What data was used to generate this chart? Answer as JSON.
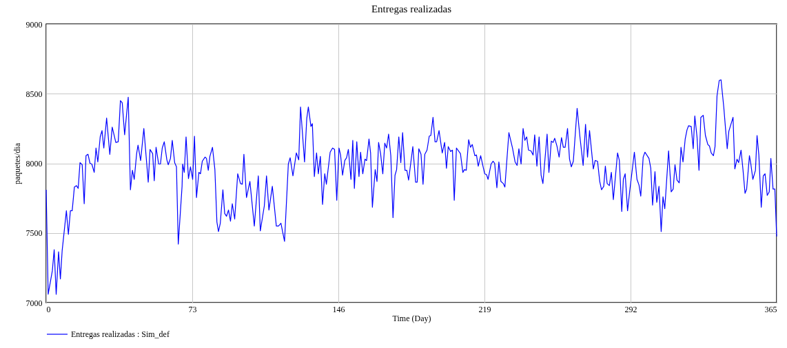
{
  "chart_data": {
    "type": "line",
    "title": "Entregas realizadas",
    "xlabel": "Time (Day)",
    "ylabel": "paquetes/dia",
    "xlim": [
      0,
      365
    ],
    "xticks": [
      0,
      73,
      146,
      219,
      292,
      365
    ],
    "ylim": [
      7000,
      9000
    ],
    "yticks": [
      7000,
      7500,
      8000,
      8500,
      9000
    ],
    "grid": true,
    "legend": "bottom",
    "x": [
      0,
      1,
      3.1,
      4,
      5,
      6.2,
      7.1,
      8,
      10.1,
      11.1,
      12.1,
      13,
      14.1,
      15.1,
      16,
      16.9,
      18,
      19,
      19.9,
      20.9,
      21.9,
      22.8,
      24,
      24.9,
      25.8,
      27,
      27.9,
      28.8,
      30.2,
      31.8,
      33,
      34.8,
      36,
      37.1,
      38,
      39.2,
      41,
      42.1,
      43.1,
      44,
      45.2,
      45.9,
      47.2,
      48.8,
      51,
      51.9,
      53.2,
      54,
      54.9,
      56.2,
      57.1,
      58,
      59,
      60.3,
      61,
      62.1,
      63,
      64.2,
      65.1,
      66,
      67.9,
      68.2,
      69,
      69.9,
      71.1,
      72.1,
      73.2,
      74.1,
      75.1,
      76.3,
      77.1,
      78,
      79.4,
      80.1,
      81,
      81.8,
      83.1,
      84.3,
      85.3,
      86.1,
      87,
      88.3,
      89.2,
      90.1,
      91.1,
      92.1,
      93,
      94.2,
      95.7,
      97.1,
      98,
      98.8,
      100.1,
      101.8,
      104,
      106,
      107,
      109,
      110.1,
      111.3,
      113,
      115,
      116.1,
      117.3,
      119.1,
      121,
      121.9,
      123.3,
      125,
      126.2,
      127.1,
      129.1,
      130.2,
      131,
      132.3,
      133,
      134,
      135.1,
      136,
      137,
      138.1,
      139.2,
      140,
      141.9,
      143.1,
      144.1,
      145.2,
      146.3,
      147.1,
      148.1,
      149.2,
      150.1,
      151,
      152.3,
      153.2,
      154,
      155.2,
      156.3,
      157.1,
      158.2,
      159.3,
      160.1,
      161.3,
      162.1,
      163,
      164.4,
      165.3,
      166.1,
      167.1,
      168.2,
      169.2,
      170.1,
      171.1,
      172.2,
      173.3,
      174.3,
      175.1,
      176.2,
      177.2,
      178.1,
      179.3,
      180.2,
      181.1,
      183.2,
      184.6,
      185.4,
      186.2,
      187.3,
      188.3,
      189.2,
      190.3,
      191.4,
      192.2,
      193.3,
      194.3,
      195.1,
      196.3,
      197.9,
      199.1,
      200,
      200.9,
      202.1,
      203,
      203.9,
      205,
      207,
      208.2,
      209,
      209.9,
      211.1,
      212,
      212.9,
      214.2,
      215,
      215.9,
      217.1,
      219.1,
      220,
      220.8,
      222.3,
      223.3,
      224.1,
      225.2,
      226.2,
      227.2,
      228.4,
      229.2,
      231.2,
      233,
      234.3,
      235.3,
      236.2,
      237.3,
      238.3,
      239.2,
      240.1,
      241,
      242.2,
      243.3,
      244.1,
      245.2,
      246.3,
      247.3,
      248.2,
      250.3,
      251.2,
      252.4,
      253.3,
      254.1,
      255.2,
      256.3,
      257.5,
      258.4,
      259.3,
      260.5,
      261.5,
      262.4,
      263.4,
      265.3,
      266.7,
      268.3,
      269.5,
      270.5,
      271.5,
      273.4,
      274.3,
      275.5,
      276.6,
      277.5,
      278.6,
      279.4,
      280.3,
      281.4,
      282.4,
      283.4,
      285.5,
      286.4,
      287.6,
      288.4,
      289.3,
      290.5,
      291.6,
      293.9,
      295.2,
      296.2,
      297.1,
      298.3,
      299.2,
      301.2,
      302.1,
      303,
      304.2,
      305.1,
      306.2,
      307.3,
      308.2,
      309.1,
      311,
      312.3,
      313.3,
      314.2,
      315.2,
      316.3,
      317.2,
      318.2,
      319.3,
      320.2,
      321,
      322.3,
      323.3,
      324.1,
      325.2,
      326.2,
      327.1,
      328.3,
      329.4,
      330.6,
      331.4,
      332.3,
      333.4,
      334.2,
      335.2,
      336.3,
      337.2,
      338.6,
      339.5,
      340.3,
      341.1,
      343.2,
      344.1,
      345.2,
      346,
      347.2,
      348.2,
      349.2,
      350,
      351.4,
      352.1,
      353.1,
      354.4,
      355.2,
      356.1,
      357.3,
      358.3,
      359.2,
      360.3,
      361.3,
      362.1,
      363.2,
      364.1,
      365
    ],
    "series": [
      {
        "name": "Entregas realizadas : Sim_def",
        "color": "#0000ff",
        "values": [
          7810,
          7060,
          7230,
          7380,
          7060,
          7365,
          7170,
          7375,
          7660,
          7490,
          7660,
          7660,
          7830,
          7840,
          7820,
          8005,
          7990,
          7710,
          8055,
          8065,
          8000,
          7995,
          7935,
          8110,
          8010,
          8190,
          8235,
          8110,
          8325,
          8065,
          8260,
          8150,
          8155,
          8450,
          8435,
          8205,
          8475,
          7810,
          7950,
          7885,
          8070,
          8130,
          8020,
          8250,
          7865,
          8100,
          8070,
          7875,
          8115,
          7995,
          7995,
          8110,
          8155,
          8025,
          7990,
          8035,
          8165,
          8005,
          7975,
          7420,
          7835,
          7995,
          7935,
          8190,
          7890,
          7975,
          7885,
          8195,
          7755,
          7935,
          7925,
          8015,
          8045,
          8035,
          7950,
          8050,
          8115,
          7955,
          7580,
          7510,
          7570,
          7810,
          7640,
          7620,
          7665,
          7585,
          7710,
          7600,
          7925,
          7855,
          7850,
          8065,
          7755,
          7870,
          7550,
          7910,
          7515,
          7695,
          7910,
          7665,
          7835,
          7550,
          7550,
          7570,
          7440,
          7995,
          8040,
          7910,
          8075,
          8025,
          8405,
          8010,
          8320,
          8405,
          8265,
          8285,
          7905,
          8075,
          7925,
          8050,
          7705,
          7925,
          7850,
          8080,
          8110,
          8100,
          7735,
          8110,
          8060,
          7915,
          8020,
          8040,
          8100,
          7885,
          8165,
          7820,
          8155,
          7905,
          8080,
          7925,
          8030,
          8020,
          8175,
          8075,
          7685,
          7955,
          7870,
          8150,
          8070,
          7925,
          8145,
          8110,
          8210,
          8055,
          7610,
          7915,
          7955,
          8190,
          8005,
          8220,
          7950,
          7950,
          7880,
          8120,
          7865,
          7865,
          8105,
          8065,
          7850,
          8065,
          8095,
          8195,
          8200,
          8330,
          8155,
          8155,
          8235,
          8075,
          8150,
          7965,
          8120,
          8085,
          8095,
          7735,
          8110,
          8070,
          7935,
          7955,
          7950,
          8170,
          8115,
          8135,
          8055,
          8060,
          7980,
          8055,
          7925,
          7920,
          7885,
          7995,
          8015,
          8000,
          7825,
          8010,
          7870,
          7855,
          7830,
          8220,
          8110,
          8010,
          7985,
          8105,
          7995,
          8250,
          8165,
          8190,
          8095,
          8090,
          8060,
          8205,
          7980,
          8190,
          7915,
          7855,
          8210,
          7935,
          8160,
          8150,
          8180,
          8125,
          8045,
          8185,
          8115,
          8115,
          8250,
          8030,
          7975,
          8015,
          8395,
          8190,
          7985,
          8280,
          8045,
          8235,
          7960,
          8020,
          8015,
          7870,
          7810,
          7835,
          7980,
          7855,
          7840,
          7935,
          7740,
          8075,
          8020,
          7655,
          7885,
          7925,
          7660,
          7805,
          8080,
          7885,
          7845,
          7765,
          8045,
          8080,
          8035,
          7965,
          7700,
          7940,
          7720,
          7835,
          7510,
          7760,
          7675,
          8090,
          7795,
          7815,
          7990,
          7880,
          7860,
          8115,
          8010,
          8175,
          8240,
          8270,
          8265,
          8105,
          8340,
          8190,
          7950,
          8330,
          8345,
          8200,
          8135,
          8125,
          8075,
          8055,
          8120,
          8485,
          8595,
          8600,
          8400,
          8240,
          8105,
          8230,
          8330,
          7960,
          8030,
          8005,
          8095,
          7950,
          7785,
          7815,
          8055,
          7995,
          7885,
          7950,
          8200,
          8060,
          7685,
          7910,
          7925,
          7770,
          7795,
          8035,
          7815,
          7815,
          7475
        ]
      }
    ]
  }
}
